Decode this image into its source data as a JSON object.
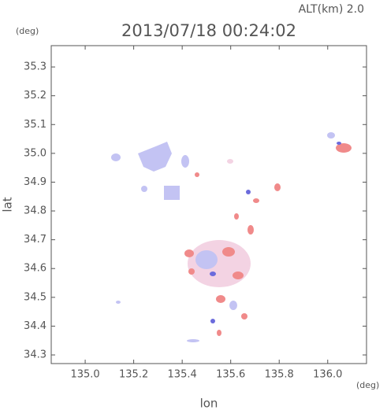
{
  "chart_data": {
    "type": "map",
    "title": "2013/07/18 00:24:02",
    "annotation": "ALT(km)  2.0",
    "x_label": "lon",
    "y_label": "lat",
    "x_unit": "(deg)",
    "y_unit": "(deg)",
    "xlim": [
      134.86,
      136.16
    ],
    "ylim": [
      34.27,
      35.374
    ],
    "xticks": [
      {
        "value": 135.0,
        "label": "135.0"
      },
      135.2,
      135.4,
      135.6,
      135.8,
      {
        "value": 136.0,
        "label": "136.0"
      }
    ],
    "yticks": [
      34.3,
      34.4,
      34.5,
      34.6,
      34.7,
      34.8,
      34.9,
      {
        "value": 35.0,
        "label": "35.0"
      },
      35.1,
      35.2,
      35.3
    ]
  }
}
